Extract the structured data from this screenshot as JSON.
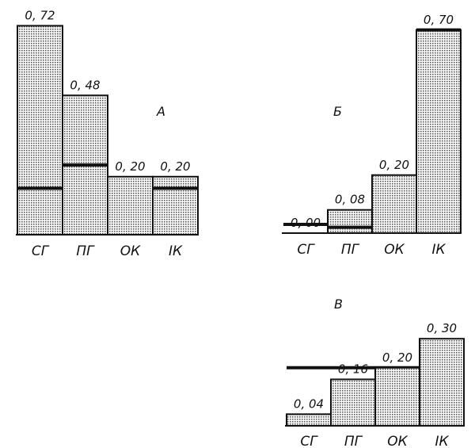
{
  "chart_data": [
    {
      "type": "bar",
      "title": "А",
      "categories": [
        "СГ",
        "ПГ",
        "ОК",
        "IК"
      ],
      "values": [
        0.72,
        0.48,
        0.2,
        0.2
      ],
      "value_labels": [
        "0, 72",
        "0, 48",
        "0, 20",
        "0, 20"
      ],
      "reference_values": [
        0.16,
        0.24,
        null,
        0.16
      ],
      "colors": {
        "fill": "#c8c8c8",
        "line": "#111111"
      }
    },
    {
      "type": "bar",
      "title": "Б",
      "categories": [
        "СГ",
        "ПГ",
        "ОК",
        "IК"
      ],
      "values": [
        0.0,
        0.08,
        0.2,
        0.7
      ],
      "value_labels": [
        "0, 00",
        "0, 08",
        "0, 20",
        "0, 70"
      ],
      "reference_values": [
        0.03,
        0.02,
        null,
        0.7
      ],
      "colors": {
        "fill": "#c8c8c8",
        "line": "#111111"
      }
    },
    {
      "type": "bar",
      "title": "В",
      "categories": [
        "СГ",
        "ПГ",
        "ОК",
        "IК"
      ],
      "values": [
        0.04,
        0.16,
        0.2,
        0.3
      ],
      "value_labels": [
        "0, 04",
        "0, 16",
        "0, 20",
        "0, 30"
      ],
      "reference_level": 0.2,
      "colors": {
        "fill": "#c8c8c8",
        "line": "#111111"
      }
    }
  ]
}
